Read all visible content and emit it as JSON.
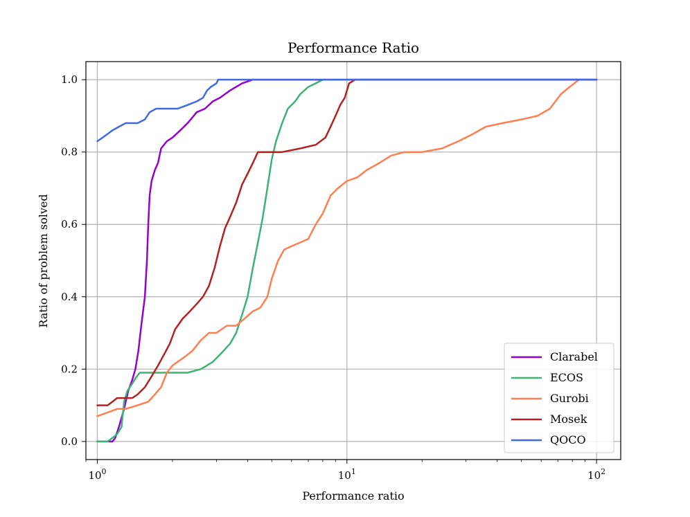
{
  "chart_data": {
    "type": "line",
    "title": "Performance Ratio",
    "xlabel": "Performance ratio",
    "ylabel": "Ratio of problem solved",
    "xscale": "log",
    "xlim": [
      0.9,
      125
    ],
    "ylim": [
      -0.05,
      1.05
    ],
    "grid": true,
    "legend_position": "lower-right",
    "x_ticks": [
      {
        "value": 1,
        "base": "10",
        "exp": "0"
      },
      {
        "value": 10,
        "base": "10",
        "exp": "1"
      },
      {
        "value": 100,
        "base": "10",
        "exp": "2"
      }
    ],
    "y_ticks": [
      {
        "value": 0.0,
        "label": "0.0"
      },
      {
        "value": 0.2,
        "label": "0.2"
      },
      {
        "value": 0.4,
        "label": "0.4"
      },
      {
        "value": 0.6,
        "label": "0.6"
      },
      {
        "value": 0.8,
        "label": "0.8"
      },
      {
        "value": 1.0,
        "label": "1.0"
      }
    ],
    "series": [
      {
        "name": "Clarabel",
        "color": "#9400d3",
        "points": [
          [
            1.0,
            0.0
          ],
          [
            1.05,
            0.0
          ],
          [
            1.1,
            0.0
          ],
          [
            1.15,
            0.0
          ],
          [
            1.18,
            0.01
          ],
          [
            1.22,
            0.04
          ],
          [
            1.28,
            0.09
          ],
          [
            1.33,
            0.14
          ],
          [
            1.38,
            0.17
          ],
          [
            1.42,
            0.2
          ],
          [
            1.46,
            0.25
          ],
          [
            1.5,
            0.32
          ],
          [
            1.55,
            0.4
          ],
          [
            1.58,
            0.5
          ],
          [
            1.6,
            0.6
          ],
          [
            1.62,
            0.68
          ],
          [
            1.65,
            0.72
          ],
          [
            1.7,
            0.75
          ],
          [
            1.75,
            0.77
          ],
          [
            1.8,
            0.81
          ],
          [
            1.9,
            0.83
          ],
          [
            2.0,
            0.84
          ],
          [
            2.15,
            0.86
          ],
          [
            2.3,
            0.88
          ],
          [
            2.5,
            0.91
          ],
          [
            2.7,
            0.92
          ],
          [
            2.9,
            0.94
          ],
          [
            3.1,
            0.95
          ],
          [
            3.4,
            0.97
          ],
          [
            3.8,
            0.99
          ],
          [
            4.2,
            1.0
          ],
          [
            100.0,
            1.0
          ]
        ]
      },
      {
        "name": "ECOS",
        "color": "#3cb371",
        "points": [
          [
            1.0,
            0.0
          ],
          [
            1.1,
            0.0
          ],
          [
            1.15,
            0.01
          ],
          [
            1.2,
            0.02
          ],
          [
            1.25,
            0.04
          ],
          [
            1.28,
            0.11
          ],
          [
            1.32,
            0.14
          ],
          [
            1.38,
            0.16
          ],
          [
            1.44,
            0.18
          ],
          [
            1.48,
            0.19
          ],
          [
            1.55,
            0.19
          ],
          [
            1.8,
            0.19
          ],
          [
            2.0,
            0.19
          ],
          [
            2.3,
            0.19
          ],
          [
            2.6,
            0.2
          ],
          [
            2.9,
            0.22
          ],
          [
            3.1,
            0.24
          ],
          [
            3.4,
            0.27
          ],
          [
            3.6,
            0.3
          ],
          [
            3.8,
            0.35
          ],
          [
            4.0,
            0.4
          ],
          [
            4.2,
            0.48
          ],
          [
            4.4,
            0.55
          ],
          [
            4.6,
            0.62
          ],
          [
            4.8,
            0.7
          ],
          [
            5.0,
            0.78
          ],
          [
            5.2,
            0.83
          ],
          [
            5.5,
            0.88
          ],
          [
            5.8,
            0.92
          ],
          [
            6.2,
            0.94
          ],
          [
            6.5,
            0.96
          ],
          [
            7.0,
            0.98
          ],
          [
            7.5,
            0.99
          ],
          [
            8.0,
            1.0
          ],
          [
            100.0,
            1.0
          ]
        ]
      },
      {
        "name": "Gurobi",
        "color": "#ff7f50",
        "points": [
          [
            1.0,
            0.07
          ],
          [
            1.1,
            0.08
          ],
          [
            1.2,
            0.09
          ],
          [
            1.3,
            0.09
          ],
          [
            1.45,
            0.1
          ],
          [
            1.6,
            0.11
          ],
          [
            1.7,
            0.13
          ],
          [
            1.8,
            0.15
          ],
          [
            1.9,
            0.19
          ],
          [
            2.0,
            0.21
          ],
          [
            2.2,
            0.23
          ],
          [
            2.4,
            0.25
          ],
          [
            2.6,
            0.28
          ],
          [
            2.8,
            0.3
          ],
          [
            3.0,
            0.3
          ],
          [
            3.3,
            0.32
          ],
          [
            3.6,
            0.32
          ],
          [
            3.9,
            0.34
          ],
          [
            4.2,
            0.36
          ],
          [
            4.5,
            0.37
          ],
          [
            4.8,
            0.4
          ],
          [
            5.0,
            0.45
          ],
          [
            5.3,
            0.5
          ],
          [
            5.6,
            0.53
          ],
          [
            6.0,
            0.54
          ],
          [
            6.5,
            0.55
          ],
          [
            7.0,
            0.56
          ],
          [
            7.5,
            0.6
          ],
          [
            8.0,
            0.63
          ],
          [
            8.6,
            0.68
          ],
          [
            9.2,
            0.7
          ],
          [
            10.0,
            0.72
          ],
          [
            11.0,
            0.73
          ],
          [
            12.0,
            0.75
          ],
          [
            13.5,
            0.77
          ],
          [
            15.0,
            0.79
          ],
          [
            17.0,
            0.8
          ],
          [
            20.0,
            0.8
          ],
          [
            24.0,
            0.81
          ],
          [
            28.0,
            0.83
          ],
          [
            32.0,
            0.85
          ],
          [
            36.0,
            0.87
          ],
          [
            42.0,
            0.88
          ],
          [
            50.0,
            0.89
          ],
          [
            58.0,
            0.9
          ],
          [
            65.0,
            0.92
          ],
          [
            72.0,
            0.96
          ],
          [
            78.0,
            0.98
          ],
          [
            85.0,
            1.0
          ],
          [
            100.0,
            1.0
          ]
        ]
      },
      {
        "name": "Mosek",
        "color": "#b22222",
        "points": [
          [
            1.0,
            0.1
          ],
          [
            1.1,
            0.1
          ],
          [
            1.15,
            0.11
          ],
          [
            1.2,
            0.12
          ],
          [
            1.3,
            0.12
          ],
          [
            1.38,
            0.12
          ],
          [
            1.45,
            0.13
          ],
          [
            1.55,
            0.15
          ],
          [
            1.65,
            0.18
          ],
          [
            1.75,
            0.21
          ],
          [
            1.85,
            0.24
          ],
          [
            1.95,
            0.27
          ],
          [
            2.05,
            0.31
          ],
          [
            2.2,
            0.34
          ],
          [
            2.35,
            0.36
          ],
          [
            2.5,
            0.38
          ],
          [
            2.65,
            0.4
          ],
          [
            2.8,
            0.43
          ],
          [
            2.95,
            0.48
          ],
          [
            3.1,
            0.54
          ],
          [
            3.25,
            0.59
          ],
          [
            3.4,
            0.62
          ],
          [
            3.6,
            0.66
          ],
          [
            3.8,
            0.71
          ],
          [
            4.0,
            0.74
          ],
          [
            4.2,
            0.77
          ],
          [
            4.4,
            0.8
          ],
          [
            4.8,
            0.8
          ],
          [
            5.5,
            0.8
          ],
          [
            6.5,
            0.81
          ],
          [
            7.5,
            0.82
          ],
          [
            8.2,
            0.84
          ],
          [
            8.6,
            0.87
          ],
          [
            9.0,
            0.9
          ],
          [
            9.4,
            0.93
          ],
          [
            9.8,
            0.95
          ],
          [
            10.2,
            0.99
          ],
          [
            10.8,
            1.0
          ],
          [
            100.0,
            1.0
          ]
        ]
      },
      {
        "name": "QOCO",
        "color": "#4169e1",
        "points": [
          [
            1.0,
            0.83
          ],
          [
            1.05,
            0.84
          ],
          [
            1.1,
            0.85
          ],
          [
            1.15,
            0.86
          ],
          [
            1.22,
            0.87
          ],
          [
            1.3,
            0.88
          ],
          [
            1.45,
            0.88
          ],
          [
            1.55,
            0.89
          ],
          [
            1.62,
            0.91
          ],
          [
            1.72,
            0.92
          ],
          [
            1.9,
            0.92
          ],
          [
            2.1,
            0.92
          ],
          [
            2.3,
            0.93
          ],
          [
            2.5,
            0.94
          ],
          [
            2.65,
            0.95
          ],
          [
            2.75,
            0.97
          ],
          [
            2.85,
            0.98
          ],
          [
            3.0,
            0.99
          ],
          [
            3.05,
            1.0
          ],
          [
            100.0,
            1.0
          ]
        ]
      }
    ]
  }
}
